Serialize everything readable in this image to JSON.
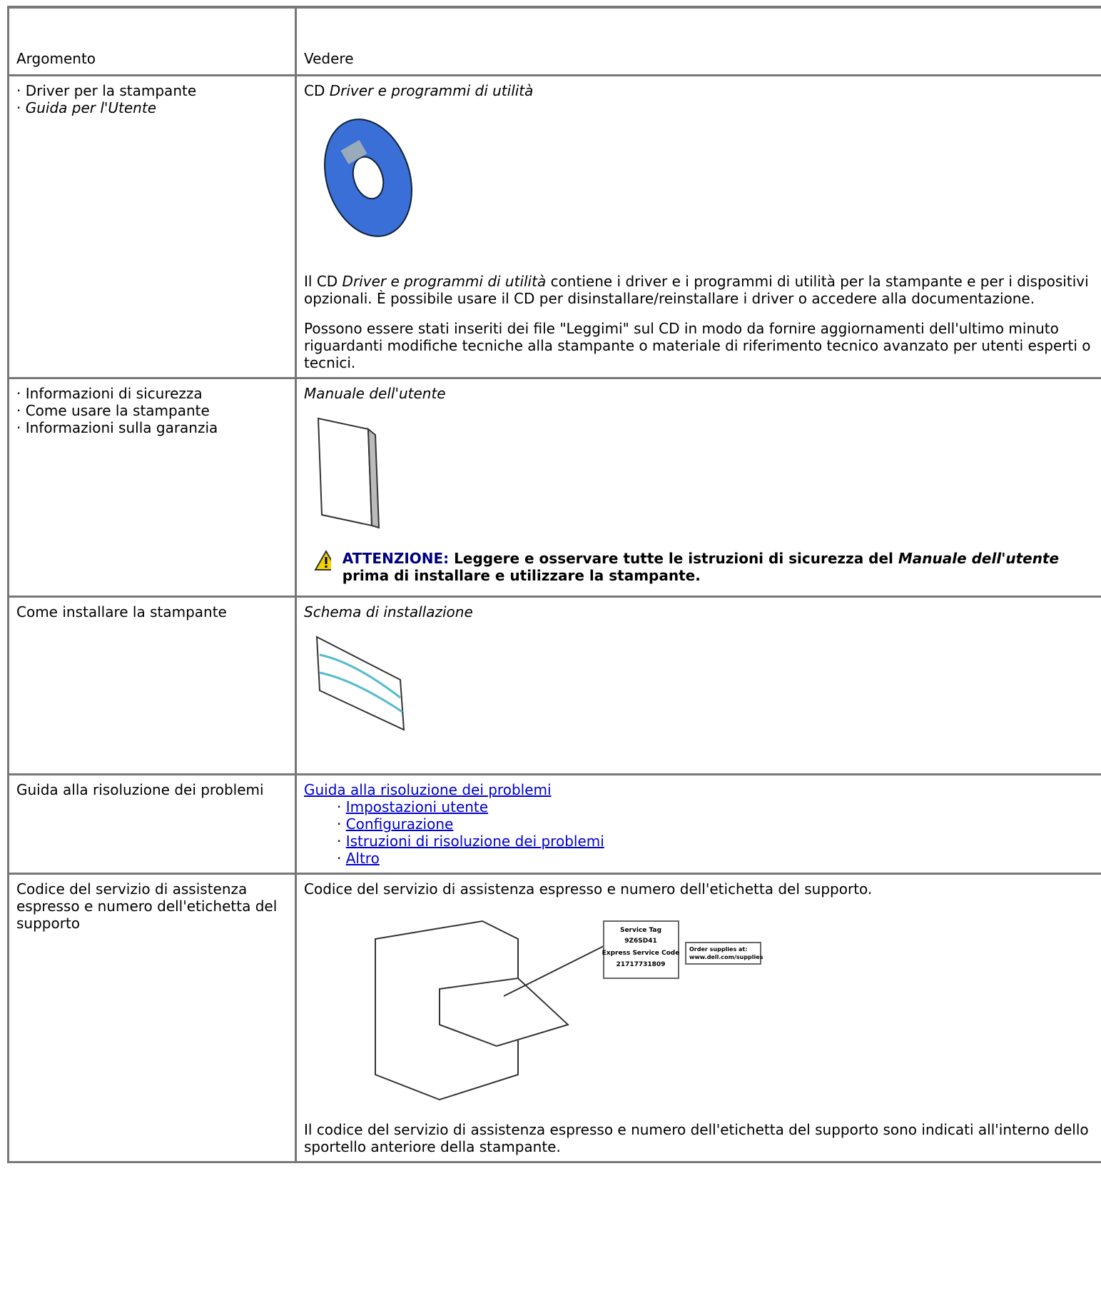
{
  "header": [
    "Argomento",
    "Vedere"
  ],
  "rows": [
    {
      "topic": [
        "· Driver per la stampante",
        "· ",
        "Guida per l'Utente"
      ],
      "see": [
        "CD ",
        "Driver e programmi di utilità",
        "Il CD ",
        "Driver e programmi di utilità",
        " contiene i driver e i programmi di utilità per la stampante e per i dispositivi opzionali. È possibile usare il CD per disinstallare/reinstallare i driver o accedere alla documentazione.",
        "Possono essere stati inseriti dei file \"Leggimi\" sul CD in modo da fornire aggiornamenti dell'ultimo minuto riguardanti modifiche tecniche alla stampante o materiale di riferimento tecnico avanzato per utenti esperti o tecnici."
      ]
    },
    {
      "topic": [
        "· Informazioni di sicurezza",
        "· Come usare la stampante",
        "· Informazioni sulla garanzia"
      ],
      "see": [
        "Manuale dell'utente",
        "ATTENZIONE:",
        " Leggere e osservare tutte le istruzioni di sicurezza del ",
        "Manuale dell'utente",
        " prima di installare e utilizzare la stampante."
      ]
    },
    {
      "topic": [
        "Come installare la stampante"
      ],
      "see": [
        "Schema di installazione"
      ]
    },
    {
      "topic": [
        "Guida alla risoluzione dei problemi"
      ],
      "see": [
        "Guida alla risoluzione dei problemi",
        "· ",
        "Impostazioni utente",
        "· ",
        "Configurazione",
        "· ",
        "Istruzioni di risoluzione dei problemi",
        "· ",
        "Altro"
      ]
    },
    {
      "topic": [
        "Codice del servizio di assistenza espresso e numero dell'etichetta del supporto"
      ],
      "see": [
        "Codice del servizio di assistenza espresso e numero dell'etichetta del supporto.",
        "Il codice del servizio di assistenza espresso e numero dell'etichetta del supporto sono indicati all'interno dello sportello anteriore della stampante."
      ],
      "label": [
        "Service Tag",
        "9Z6SD41",
        "Express Service Code",
        "21717731809",
        "Order supplies at:",
        "www.dell.com/supplies"
      ]
    }
  ]
}
